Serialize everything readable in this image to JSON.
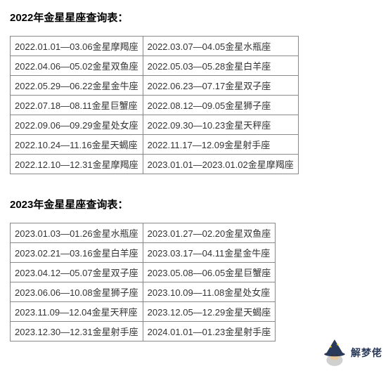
{
  "tables": [
    {
      "heading": "2022年金星星座查询表：",
      "rows": [
        [
          "2022.01.01—03.06金星摩羯座",
          "2022.03.07—04.05金星水瓶座"
        ],
        [
          "2022.04.06—05.02金星双鱼座",
          "2022.05.03—05.28金星白羊座"
        ],
        [
          "2022.05.29—06.22金星金牛座",
          "2022.06.23—07.17金星双子座"
        ],
        [
          "2022.07.18—08.11金星巨蟹座",
          "2022.08.12—09.05金星狮子座"
        ],
        [
          "2022.09.06—09.29金星处女座",
          "2022.09.30—10.23金星天秤座"
        ],
        [
          "2022.10.24—11.16金星天蝎座",
          "2022.11.17—12.09金星射手座"
        ],
        [
          "2022.12.10—12.31金星摩羯座",
          "2023.01.01—2023.01.02金星摩羯座"
        ]
      ]
    },
    {
      "heading": "2023年金星星座查询表：",
      "rows": [
        [
          "2023.01.03—01.26金星水瓶座",
          "2023.01.27—02.20金星双鱼座"
        ],
        [
          "2023.02.21—03.16金星白羊座",
          "2023.03.17—04.11金星金牛座"
        ],
        [
          "2023.04.12—05.07金星双子座",
          "2023.05.08—06.05金星巨蟹座"
        ],
        [
          "2023.06.06—10.08金星狮子座",
          "2023.10.09—11.08金星处女座"
        ],
        [
          "2023.11.09—12.04金星天秤座",
          "2023.12.05—12.29金星天蝎座"
        ],
        [
          "2023.12.30—12.31金星射手座",
          "2024.01.01—01.23金星射手座"
        ]
      ]
    }
  ],
  "watermark": {
    "text": "解梦佬",
    "icon_hat_color": "#2a3a5a",
    "icon_face_color": "#e8c89a",
    "icon_beard_color": "#d0d0d0",
    "text_color": "#2a3a5a"
  },
  "styling": {
    "heading_fontsize": 15,
    "cell_fontsize": 13,
    "border_color": "#888888",
    "text_color": "#333333",
    "background_color": "#ffffff"
  }
}
